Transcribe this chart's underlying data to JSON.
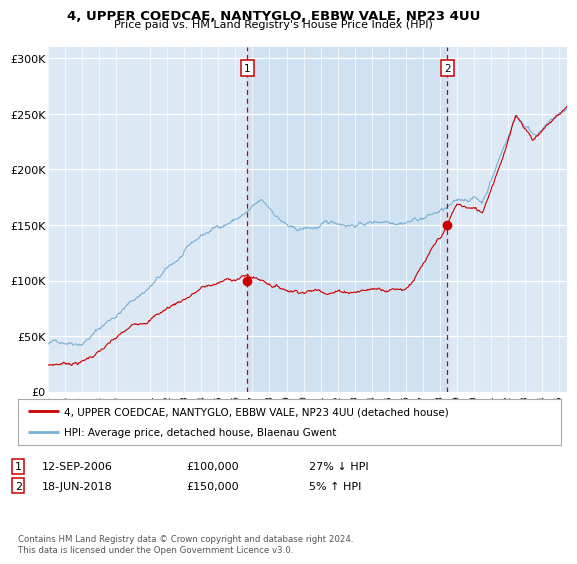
{
  "title1": "4, UPPER COEDCAE, NANTYGLO, EBBW VALE, NP23 4UU",
  "title2": "Price paid vs. HM Land Registry's House Price Index (HPI)",
  "background_color": "#dce9f5",
  "ylabel_ticks": [
    "£0",
    "£50K",
    "£100K",
    "£150K",
    "£200K",
    "£250K",
    "£300K"
  ],
  "ytick_values": [
    0,
    50000,
    100000,
    150000,
    200000,
    250000,
    300000
  ],
  "ylim": [
    0,
    310000
  ],
  "xlim_start": 1995.0,
  "xlim_end": 2025.5,
  "hpi_color": "#7ab0d4",
  "price_color": "#cc0000",
  "transaction1_x": 2006.7,
  "transaction1_y": 100000,
  "transaction1_label": "1",
  "transaction2_x": 2018.46,
  "transaction2_y": 150000,
  "transaction2_label": "2",
  "vline_color": "#cc0000",
  "legend_label_red": "4, UPPER COEDCAE, NANTYGLO, EBBW VALE, NP23 4UU (detached house)",
  "legend_label_blue": "HPI: Average price, detached house, Blaenau Gwent",
  "note1_num": "1",
  "note1_date": "12-SEP-2006",
  "note1_price": "£100,000",
  "note1_hpi": "27% ↓ HPI",
  "note2_num": "2",
  "note2_date": "18-JUN-2018",
  "note2_price": "£150,000",
  "note2_hpi": "5% ↑ HPI",
  "footer": "Contains HM Land Registry data © Crown copyright and database right 2024.\nThis data is licensed under the Open Government Licence v3.0.",
  "xtick_years": [
    1995,
    1996,
    1997,
    1998,
    1999,
    2001,
    2002,
    2003,
    2004,
    2005,
    2006,
    2007,
    2008,
    2009,
    2010,
    2011,
    2012,
    2013,
    2014,
    2015,
    2016,
    2017,
    2018,
    2019,
    2020,
    2021,
    2022,
    2023,
    2024,
    2025
  ]
}
